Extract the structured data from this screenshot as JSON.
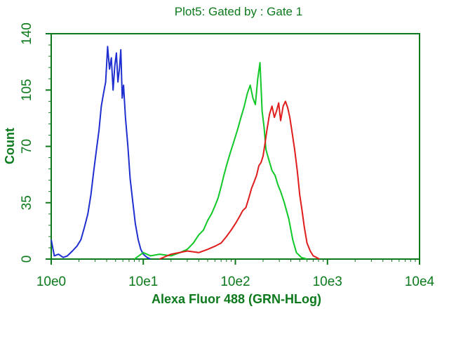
{
  "colors": {
    "axis": "#0c7a1c",
    "text": "#0c7a1c",
    "series_blue": "#1f2fd0",
    "series_green": "#10c828",
    "series_red": "#e01c1c"
  },
  "chart_data": {
    "type": "line",
    "title": "Plot5:   Gated by :  Gate 1",
    "xlabel": "Alexa Fluor 488 (GRN-HLog)",
    "ylabel": "Count",
    "xscale": "log",
    "xlim": [
      1,
      10000
    ],
    "ylim": [
      0,
      140
    ],
    "x_ticks": [
      "10e0",
      "10e1",
      "10e2",
      "10e3",
      "10e4"
    ],
    "y_ticks": [
      "0",
      "35",
      "70",
      "105",
      "140"
    ],
    "grid": false,
    "legend": "none",
    "series": [
      {
        "color": "blue",
        "x": [
          1,
          1.08,
          1.2,
          1.35,
          1.5,
          1.7,
          1.9,
          2.1,
          2.3,
          2.5,
          2.7,
          2.9,
          3.1,
          3.3,
          3.5,
          3.7,
          3.9,
          4.1,
          4.3,
          4.5,
          4.7,
          4.9,
          5.1,
          5.3,
          5.5,
          5.7,
          5.9,
          6.1,
          6.4,
          6.8,
          7.2,
          7.7,
          8.2,
          8.8,
          9.4,
          10,
          11,
          12
        ],
        "y": [
          12,
          2,
          3,
          1,
          2,
          5,
          8,
          12,
          20,
          28,
          40,
          55,
          68,
          80,
          95,
          103,
          110,
          132,
          118,
          125,
          105,
          120,
          128,
          110,
          118,
          130,
          100,
          108,
          88,
          70,
          50,
          35,
          22,
          12,
          6,
          3,
          1,
          0
        ]
      },
      {
        "color": "green",
        "x": [
          8,
          10,
          12,
          15,
          20,
          25,
          30,
          35,
          40,
          45,
          50,
          55,
          60,
          65,
          70,
          75,
          80,
          88,
          95,
          105,
          115,
          125,
          135,
          145,
          155,
          165,
          175,
          185,
          195,
          205,
          215,
          230,
          250,
          270,
          290,
          310,
          340,
          380,
          420,
          460,
          520,
          600
        ],
        "y": [
          0,
          4,
          2,
          3,
          2,
          4,
          6,
          10,
          15,
          18,
          24,
          28,
          33,
          38,
          45,
          52,
          58,
          66,
          72,
          80,
          88,
          95,
          103,
          108,
          100,
          96,
          112,
          122,
          92,
          82,
          68,
          62,
          55,
          52,
          46,
          42,
          35,
          25,
          12,
          4,
          1,
          0
        ]
      },
      {
        "color": "red",
        "x": [
          15,
          20,
          30,
          40,
          50,
          60,
          70,
          80,
          90,
          100,
          110,
          120,
          130,
          140,
          150,
          160,
          170,
          180,
          190,
          200,
          210,
          220,
          235,
          250,
          265,
          280,
          295,
          310,
          330,
          350,
          370,
          390,
          410,
          440,
          470,
          500,
          530,
          560,
          600,
          650,
          700,
          760,
          820
        ],
        "y": [
          0,
          3,
          5,
          4,
          6,
          8,
          10,
          14,
          18,
          22,
          26,
          30,
          32,
          38,
          44,
          48,
          52,
          58,
          60,
          64,
          72,
          80,
          90,
          95,
          88,
          92,
          97,
          86,
          95,
          98,
          94,
          88,
          80,
          68,
          55,
          40,
          30,
          20,
          10,
          5,
          2,
          1,
          0
        ]
      }
    ]
  }
}
